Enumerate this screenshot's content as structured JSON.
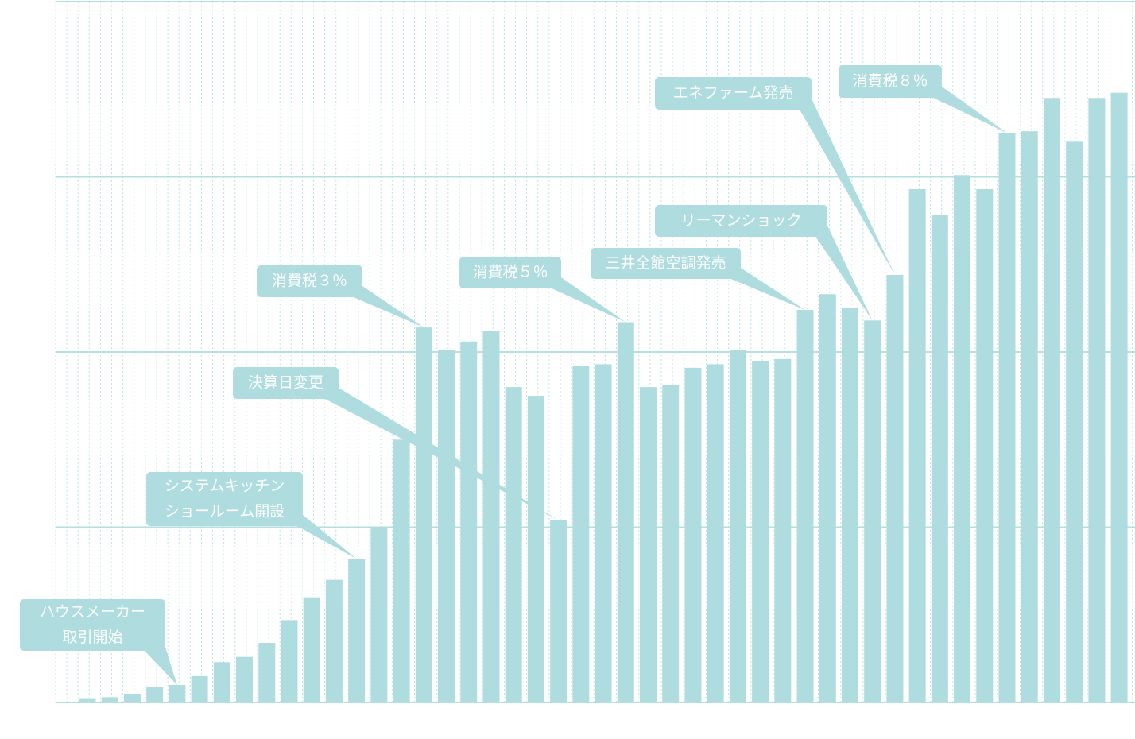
{
  "chart_data": {
    "type": "bar",
    "values": [
      0.02,
      0.03,
      0.05,
      0.09,
      0.1,
      0.15,
      0.23,
      0.26,
      0.34,
      0.47,
      0.6,
      0.7,
      0.82,
      1.0,
      1.5,
      2.14,
      2.01,
      2.06,
      2.12,
      1.8,
      1.75,
      1.04,
      1.92,
      1.93,
      2.17,
      1.8,
      1.81,
      1.91,
      1.93,
      2.01,
      1.95,
      1.96,
      2.24,
      2.33,
      2.25,
      2.18,
      2.44,
      2.93,
      2.78,
      3.01,
      2.93,
      3.25,
      3.26,
      3.45,
      3.2,
      3.45,
      3.48
    ],
    "color": "#aedcdf",
    "ylim": [
      0,
      4
    ],
    "yticks": [
      0,
      1,
      2,
      3,
      4
    ],
    "grid": true,
    "annotations": [
      [
        "ハウスメーカー",
        "取引開始"
      ],
      [
        "システムキッチン",
        "ショールーム開設"
      ],
      [
        "決算日変更"
      ],
      [
        "消費税３％"
      ],
      [
        "消費税５％"
      ],
      [
        "三井全館空調発売"
      ],
      [
        "リーマンショック"
      ],
      [
        "エネファーム発売"
      ],
      [
        "消費税８％"
      ]
    ]
  }
}
